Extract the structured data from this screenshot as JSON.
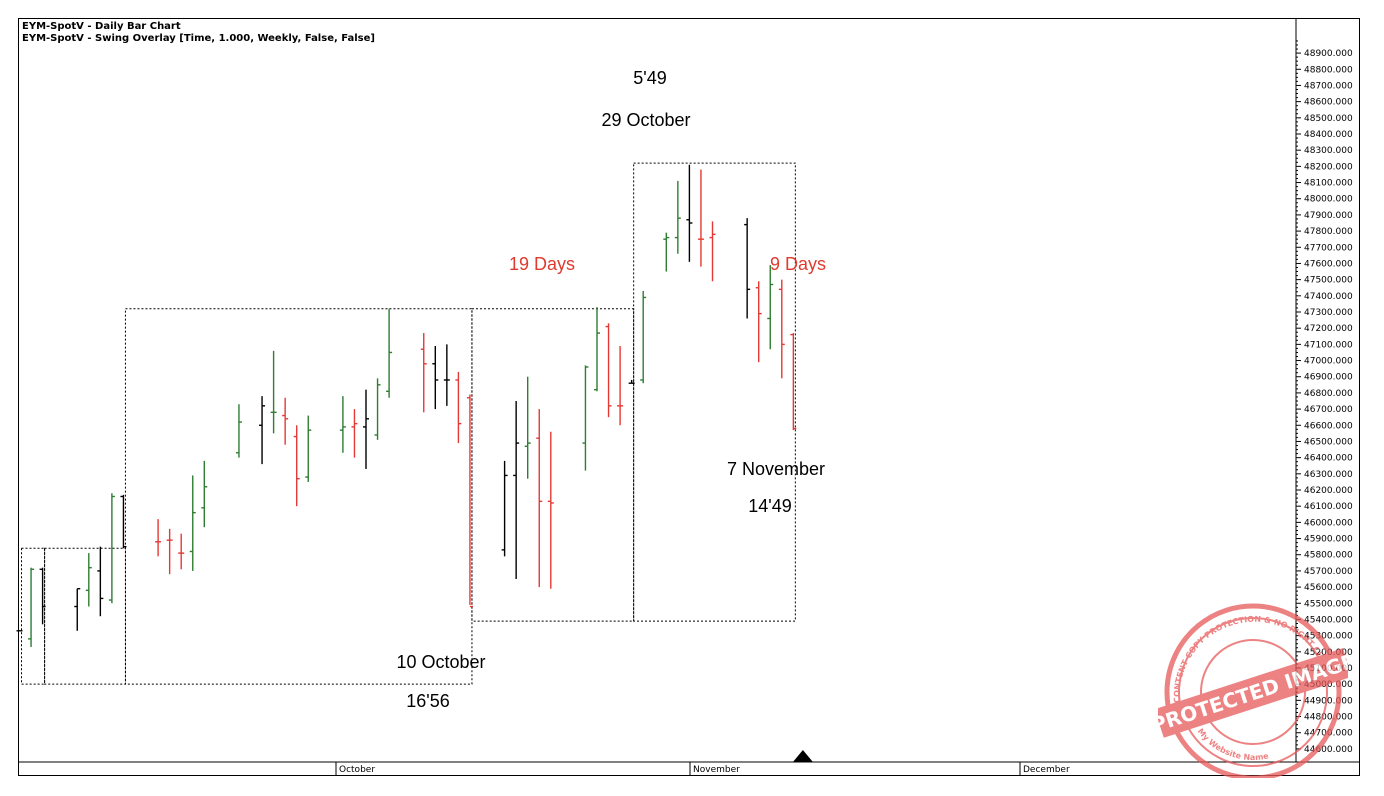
{
  "header": {
    "line1": "EYM-SpotV - Daily Bar Chart",
    "line2": "EYM-SpotV - Swing Overlay [Time, 1.000, Weekly, False, False]"
  },
  "annotations": {
    "top_time": "5'49",
    "top_date": "29 October",
    "left_count": "19 Days",
    "right_count": "9 Days",
    "low_date": "10 October",
    "low_time": "16'56",
    "right_date": "7 November",
    "right_time": "14'49"
  },
  "watermark": {
    "main": "PROTECTED IMAGE",
    "ring_top": "WP CONTENT COPY PROTECTION & NO RIGHT CLICK",
    "ring_bottom": "My Website Name"
  },
  "colors": {
    "up": "#2e7d32",
    "down": "#e53935",
    "neutral": "#000000",
    "annotation_red": "#e03a2e",
    "stamp": "#e8595a"
  },
  "chart_data": {
    "type": "ohlc",
    "title": "EYM-SpotV - Daily Bar Chart",
    "ylim": [
      44550,
      48950
    ],
    "y_ticks": [
      44600,
      44700,
      44800,
      44900,
      45000,
      45100,
      45200,
      45300,
      45400,
      45500,
      45600,
      45700,
      45800,
      45900,
      46000,
      46100,
      46200,
      46300,
      46400,
      46500,
      46600,
      46700,
      46800,
      46900,
      47000,
      47100,
      47200,
      47300,
      47400,
      47500,
      47600,
      47700,
      47800,
      47900,
      48000,
      48100,
      48200,
      48300,
      48400,
      48500,
      48600,
      48700,
      48800,
      48900
    ],
    "y_tick_format": "000",
    "x_labels": [
      "October",
      "November",
      "December"
    ],
    "bars": [
      {
        "day": 0,
        "o": 45330,
        "h": 45330,
        "l": 45330,
        "c": 45330,
        "d": "n"
      },
      {
        "day": 1,
        "o": 45280,
        "h": 45720,
        "l": 45230,
        "c": 45710,
        "d": "u"
      },
      {
        "day": 2,
        "o": 45710,
        "h": 45720,
        "l": 45370,
        "c": 45480,
        "d": "n"
      },
      {
        "day": 5,
        "o": 45480,
        "h": 45590,
        "l": 45330,
        "c": 45590,
        "d": "n"
      },
      {
        "day": 6,
        "o": 45580,
        "h": 45810,
        "l": 45480,
        "c": 45720,
        "d": "u"
      },
      {
        "day": 7,
        "o": 45700,
        "h": 45850,
        "l": 45420,
        "c": 45530,
        "d": "n"
      },
      {
        "day": 8,
        "o": 45520,
        "h": 46180,
        "l": 45500,
        "c": 46160,
        "d": "u"
      },
      {
        "day": 9,
        "o": 46160,
        "h": 46170,
        "l": 45840,
        "c": 45850,
        "d": "n"
      },
      {
        "day": 12,
        "o": 45880,
        "h": 46020,
        "l": 45790,
        "c": 45880,
        "d": "d"
      },
      {
        "day": 13,
        "o": 45890,
        "h": 45960,
        "l": 45680,
        "c": 45890,
        "d": "d"
      },
      {
        "day": 14,
        "o": 45810,
        "h": 45930,
        "l": 45710,
        "c": 45810,
        "d": "d"
      },
      {
        "day": 15,
        "o": 45820,
        "h": 46290,
        "l": 45700,
        "c": 46060,
        "d": "u"
      },
      {
        "day": 16,
        "o": 46090,
        "h": 46380,
        "l": 45970,
        "c": 46220,
        "d": "u"
      },
      {
        "day": 19,
        "o": 46430,
        "h": 46730,
        "l": 46400,
        "c": 46620,
        "d": "u"
      },
      {
        "day": 21,
        "o": 46600,
        "h": 46780,
        "l": 46360,
        "c": 46720,
        "d": "n"
      },
      {
        "day": 22,
        "o": 46680,
        "h": 47060,
        "l": 46550,
        "c": 46680,
        "d": "u"
      },
      {
        "day": 23,
        "o": 46660,
        "h": 46770,
        "l": 46480,
        "c": 46640,
        "d": "d"
      },
      {
        "day": 24,
        "o": 46530,
        "h": 46600,
        "l": 46100,
        "c": 46270,
        "d": "d"
      },
      {
        "day": 25,
        "o": 46280,
        "h": 46660,
        "l": 46250,
        "c": 46570,
        "d": "u"
      },
      {
        "day": 28,
        "o": 46570,
        "h": 46780,
        "l": 46430,
        "c": 46590,
        "d": "u"
      },
      {
        "day": 29,
        "o": 46590,
        "h": 46700,
        "l": 46400,
        "c": 46610,
        "d": "d"
      },
      {
        "day": 30,
        "o": 46590,
        "h": 46820,
        "l": 46330,
        "c": 46640,
        "d": "n"
      },
      {
        "day": 31,
        "o": 46540,
        "h": 46890,
        "l": 46510,
        "c": 46850,
        "d": "u"
      },
      {
        "day": 32,
        "o": 46810,
        "h": 47320,
        "l": 46770,
        "c": 47050,
        "d": "u"
      },
      {
        "day": 35,
        "o": 47070,
        "h": 47170,
        "l": 46680,
        "c": 46980,
        "d": "d"
      },
      {
        "day": 36,
        "o": 46980,
        "h": 47090,
        "l": 46700,
        "c": 46880,
        "d": "n"
      },
      {
        "day": 37,
        "o": 46880,
        "h": 47100,
        "l": 46720,
        "c": 46880,
        "d": "n"
      },
      {
        "day": 38,
        "o": 46880,
        "h": 46930,
        "l": 46490,
        "c": 46610,
        "d": "d"
      },
      {
        "day": 39,
        "o": 46770,
        "h": 46790,
        "l": 45490,
        "c": 45480,
        "d": "d"
      },
      {
        "day": 42,
        "o": 45830,
        "h": 46380,
        "l": 45790,
        "c": 46290,
        "d": "n"
      },
      {
        "day": 43,
        "o": 46290,
        "h": 46750,
        "l": 45650,
        "c": 46490,
        "d": "n"
      },
      {
        "day": 44,
        "o": 46470,
        "h": 46900,
        "l": 46270,
        "c": 46490,
        "d": "u"
      },
      {
        "day": 45,
        "o": 46520,
        "h": 46700,
        "l": 45600,
        "c": 46130,
        "d": "d"
      },
      {
        "day": 46,
        "o": 46130,
        "h": 46560,
        "l": 45590,
        "c": 46120,
        "d": "d"
      },
      {
        "day": 49,
        "o": 46490,
        "h": 46970,
        "l": 46320,
        "c": 46960,
        "d": "u"
      },
      {
        "day": 50,
        "o": 46820,
        "h": 47330,
        "l": 46810,
        "c": 47170,
        "d": "u"
      },
      {
        "day": 51,
        "o": 47210,
        "h": 47230,
        "l": 46650,
        "c": 46720,
        "d": "d"
      },
      {
        "day": 52,
        "o": 46720,
        "h": 47090,
        "l": 46600,
        "c": 46720,
        "d": "d"
      },
      {
        "day": 53,
        "o": 46860,
        "h": 46880,
        "l": 46860,
        "c": 46860,
        "d": "n"
      },
      {
        "day": 54,
        "o": 46880,
        "h": 47430,
        "l": 46860,
        "c": 47390,
        "d": "u"
      },
      {
        "day": 56,
        "o": 47750,
        "h": 47790,
        "l": 47550,
        "c": 47760,
        "d": "u"
      },
      {
        "day": 57,
        "o": 47760,
        "h": 48110,
        "l": 47660,
        "c": 47880,
        "d": "u"
      },
      {
        "day": 58,
        "o": 47870,
        "h": 48210,
        "l": 47610,
        "c": 47850,
        "d": "n"
      },
      {
        "day": 59,
        "o": 47750,
        "h": 48180,
        "l": 47580,
        "c": 47750,
        "d": "d"
      },
      {
        "day": 60,
        "o": 47760,
        "h": 47860,
        "l": 47490,
        "c": 47780,
        "d": "d"
      },
      {
        "day": 63,
        "o": 47840,
        "h": 47880,
        "l": 47260,
        "c": 47440,
        "d": "n"
      },
      {
        "day": 64,
        "o": 47450,
        "h": 47490,
        "l": 46990,
        "c": 47290,
        "d": "d"
      },
      {
        "day": 65,
        "o": 47260,
        "h": 47590,
        "l": 47070,
        "c": 47470,
        "d": "u"
      },
      {
        "day": 66,
        "o": 47440,
        "h": 47500,
        "l": 46890,
        "c": 47100,
        "d": "d"
      },
      {
        "day": 67,
        "o": 47160,
        "h": 47170,
        "l": 46570,
        "c": 46580,
        "d": "d"
      }
    ],
    "swing_boxes": [
      {
        "day_start": 0,
        "day_end": 2,
        "high": 45840,
        "low": 45000
      },
      {
        "day_start": 2,
        "day_end": 9,
        "high": 45840,
        "low": 45000
      },
      {
        "day_start": 9,
        "day_end": 39,
        "high": 47320,
        "low": 45000
      },
      {
        "day_start": 39,
        "day_end": 53,
        "high": 47320,
        "low": 45390
      },
      {
        "day_start": 53,
        "day_end": 67,
        "high": 48220,
        "low": 45390
      }
    ],
    "marker": {
      "day": 68,
      "shape": "triangle-up"
    }
  }
}
